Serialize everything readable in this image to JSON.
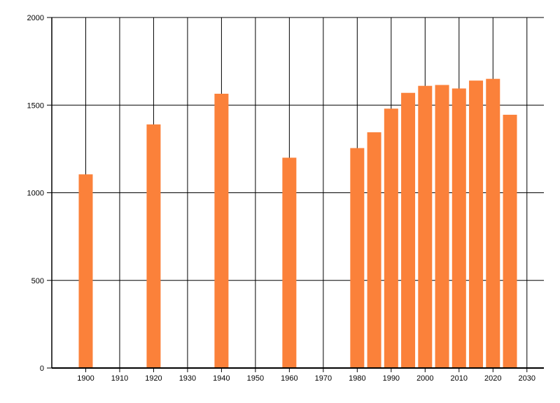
{
  "chart_data": {
    "type": "bar",
    "title": "",
    "xlabel": "",
    "ylabel": "",
    "x": [
      1900,
      1920,
      1940,
      1960,
      1980,
      1985,
      1990,
      1995,
      2000,
      2005,
      2010,
      2015,
      2020,
      2025
    ],
    "values": [
      1105,
      1390,
      1565,
      1200,
      1255,
      1345,
      1480,
      1570,
      1610,
      1615,
      1595,
      1640,
      1650,
      1445
    ],
    "x_ticks": [
      1900,
      1910,
      1920,
      1930,
      1940,
      1950,
      1960,
      1970,
      1980,
      1990,
      2000,
      2010,
      2020,
      2030
    ],
    "x_tick_labels": [
      "1900",
      "1910",
      "1920",
      "1930",
      "1940",
      "1950",
      "1960",
      "1970",
      "1980",
      "1990",
      "2000",
      "2010",
      "2020",
      "2030"
    ],
    "y_ticks": [
      0,
      500,
      1000,
      1500,
      2000
    ],
    "y_tick_labels": [
      "0",
      "500",
      "1000",
      "1500",
      "2000"
    ],
    "xlim": [
      1890,
      2035
    ],
    "ylim": [
      0,
      2000
    ],
    "grid": true,
    "legend": null,
    "colors": {
      "bar": "#FB813A",
      "grid": "#000000",
      "axis": "#000000",
      "text": "#000000",
      "background": "#FFFFFF"
    }
  }
}
